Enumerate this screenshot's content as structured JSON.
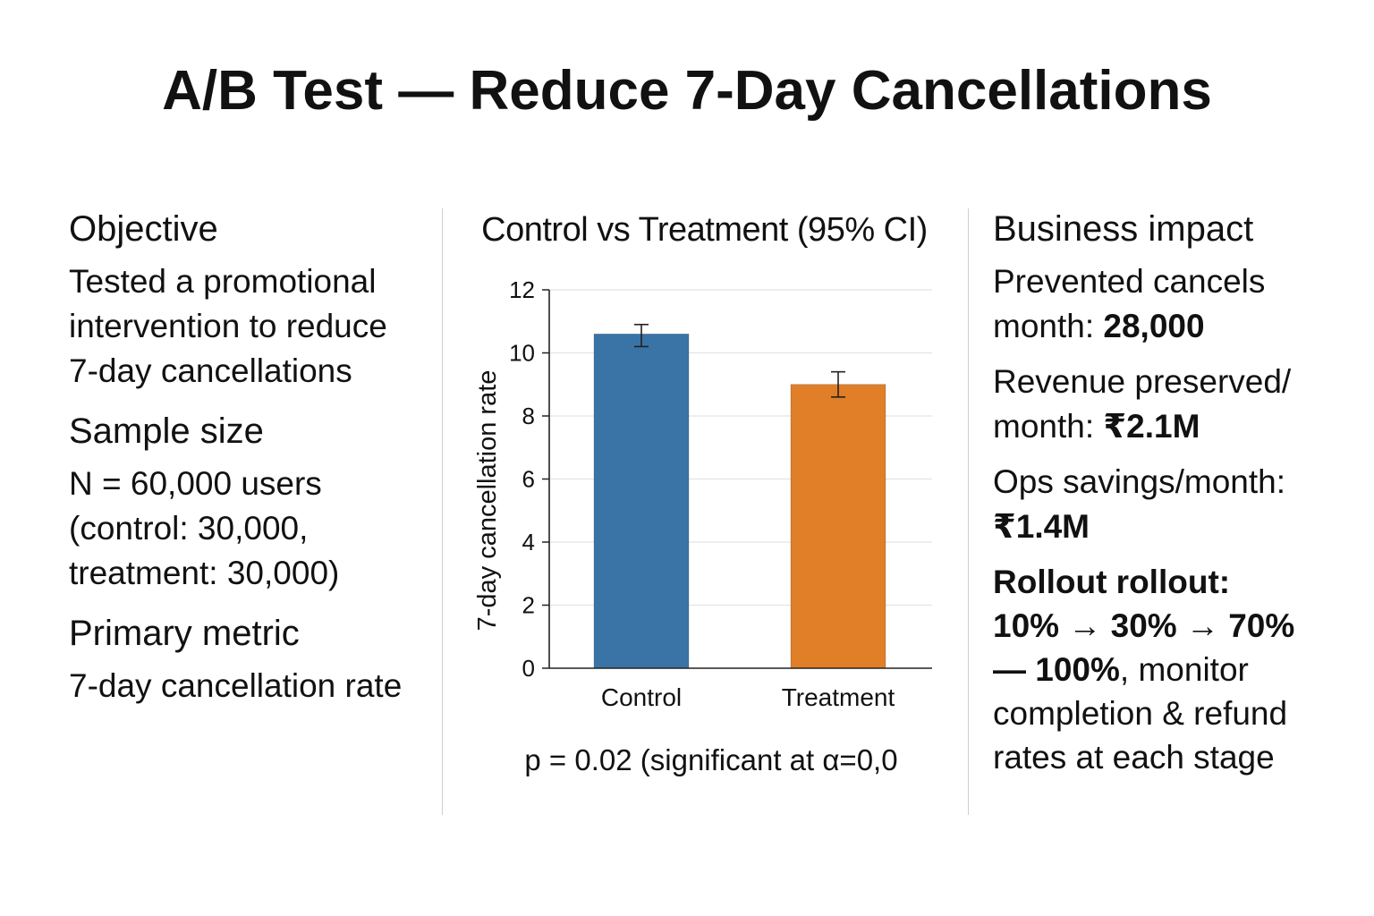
{
  "page": {
    "title": "A/B Test — Reduce 7-Day Cancellations"
  },
  "left": {
    "objective_heading": "Objective",
    "objective_text": "Tested a promotional\nintervention to reduce\n7-day cancellations",
    "sample_heading": "Sample size",
    "sample_text": "N = 60,000 users\n(control: 30,000,\ntreatment: 30,000)",
    "metric_heading": "Primary metric",
    "metric_text": "7-day cancellation rate"
  },
  "right": {
    "impact_heading": "Business impact",
    "prevented_label": "Prevented cancels\nmonth: ",
    "prevented_value": "28,000",
    "revenue_label": "Revenue preserved/\nmonth: ",
    "revenue_value": "₹2.1M",
    "ops_label": "Ops savings/month:",
    "ops_value": "₹1.4M",
    "rollout_title": "Rollout rollout:",
    "rollout_steps": "10% → 30% → 70%\n— 100%",
    "rollout_note": ", monitor\ncompletion & refund\nrates at each stage"
  },
  "chart_data": {
    "type": "bar",
    "title": "Control vs Treatment (95% CI)",
    "categories": [
      "Control",
      "Treatment"
    ],
    "values": [
      10.6,
      9.0
    ],
    "ci_low": [
      10.2,
      8.6
    ],
    "ci_high": [
      10.9,
      9.4
    ],
    "ylabel": "7-day cancellation rate",
    "xlabel": "",
    "ylim": [
      0,
      12
    ],
    "yticks": [
      0,
      2,
      4,
      6,
      8,
      10,
      12
    ],
    "grid": true,
    "colors": [
      "#3a74a6",
      "#e07f27"
    ],
    "annotation": "p = 0.02 (significant at α=0,0"
  }
}
